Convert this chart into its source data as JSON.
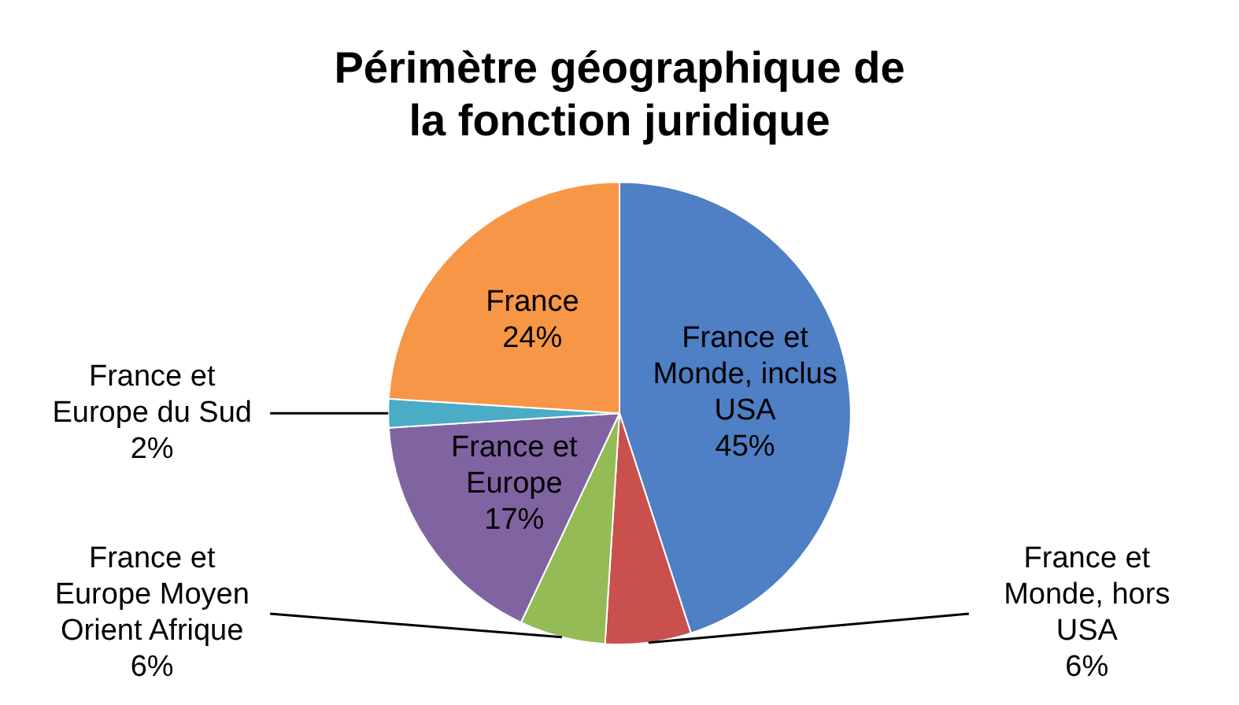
{
  "chart_data": {
    "type": "pie",
    "title": "Périmètre géographique de la fonction juridique",
    "categories": [
      "France et Monde, inclus USA",
      "France et Monde, hors USA",
      "France et Europe Moyen Orient Afrique",
      "France et Europe",
      "France et Europe du Sud",
      "France"
    ],
    "values": [
      45,
      6,
      6,
      17,
      2,
      24
    ],
    "colors": [
      "#4f7fc4",
      "#c9504d",
      "#94bb56",
      "#8064a2",
      "#4bacc6",
      "#f79646"
    ],
    "value_labels": [
      "45%",
      "6%",
      "6%",
      "17%",
      "2%",
      "24%"
    ],
    "legend": false
  }
}
